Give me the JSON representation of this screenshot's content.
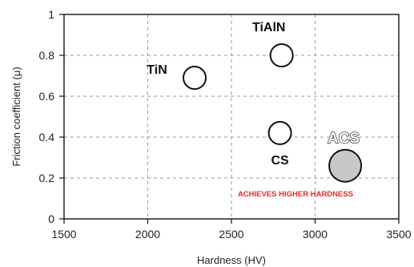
{
  "chart_data": {
    "type": "scatter",
    "title": "",
    "xlabel": "Hardness (HV)",
    "ylabel": "Friction coefficient (μ)",
    "xlim": [
      1500,
      3500
    ],
    "ylim": [
      0,
      1
    ],
    "xticks": [
      "1500",
      "2000",
      "2500",
      "3000",
      "3500"
    ],
    "yticks": [
      "0",
      "0.2",
      "0.4",
      "0.6",
      "0.8",
      "1"
    ],
    "grid": true,
    "points": [
      {
        "label": "TiN",
        "x": 2280,
        "y": 0.69,
        "highlight": false
      },
      {
        "label": "TiAlN",
        "x": 2800,
        "y": 0.8,
        "highlight": false
      },
      {
        "label": "CS",
        "x": 2790,
        "y": 0.42,
        "highlight": false
      },
      {
        "label": "ACS",
        "x": 3180,
        "y": 0.26,
        "highlight": true
      }
    ],
    "annotation": "ACHIEVES HIGHER HARDNESS",
    "colors": {
      "highlight_fill": "#c8c8c8",
      "annotation": "#e8262b",
      "grid": "#9a9a9a"
    }
  }
}
